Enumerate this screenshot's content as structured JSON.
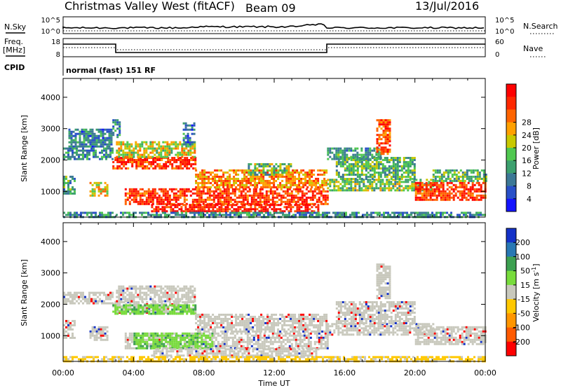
{
  "header": {
    "title": "Christmas Valley West (fitACF)",
    "beam": "Beam 09",
    "date": "13/Jul/2016"
  },
  "top_panels": {
    "nsky_label": "N.Sky",
    "nsky_ticks": [
      "10^5",
      "10^0"
    ],
    "nsearch_label": "N.Search",
    "nsearch_ticks": [
      "10^5",
      "10^0"
    ],
    "freq_label": "Freq.",
    "freq_unit": "[MHz]",
    "freq_ticks": [
      "18",
      "8"
    ],
    "nave_label": "Nave",
    "nave_ticks": [
      "60",
      "0"
    ],
    "cpid_label": "CPID",
    "cpid_text": "normal (fast) 151 RF"
  },
  "chart_data": [
    {
      "type": "heatmap",
      "title": "",
      "xlabel": "",
      "ylabel": "Slant Range [km]",
      "x_ticks": [
        "00:00",
        "04:00",
        "08:00",
        "12:00",
        "16:00",
        "20:00",
        "00:00"
      ],
      "xlim_hours": [
        0,
        24
      ],
      "y_ticks": [
        "1000",
        "2000",
        "3000",
        "4000"
      ],
      "ylim": [
        180,
        4600
      ],
      "colorbar": {
        "label": "Power [dB]",
        "ticks": [
          "4",
          "8",
          "12",
          "16",
          "20",
          "24",
          "28"
        ],
        "range": [
          0,
          30
        ],
        "colors": [
          "#1414ff",
          "#2850c8",
          "#3c7896",
          "#3ca06e",
          "#50c850",
          "#c8c800",
          "#ffa000",
          "#ff6400",
          "#ff2800",
          "#ff0000"
        ]
      },
      "echo_regions": [
        {
          "t": [
            0.0,
            0.6
          ],
          "r": [
            900,
            1500
          ],
          "level": 0.35
        },
        {
          "t": [
            0.0,
            2.8
          ],
          "r": [
            2050,
            2400
          ],
          "level": 0.3
        },
        {
          "t": [
            0.3,
            2.8
          ],
          "r": [
            2400,
            3000
          ],
          "level": 0.25
        },
        {
          "t": [
            1.5,
            2.5
          ],
          "r": [
            850,
            1300
          ],
          "level": 0.6
        },
        {
          "t": [
            2.8,
            3.2
          ],
          "r": [
            2700,
            3300
          ],
          "level": 0.3
        },
        {
          "t": [
            2.8,
            7.5
          ],
          "r": [
            1700,
            2100
          ],
          "level": 0.85
        },
        {
          "t": [
            3.0,
            7.5
          ],
          "r": [
            2100,
            2600
          ],
          "level": 0.55
        },
        {
          "t": [
            6.8,
            7.5
          ],
          "r": [
            2500,
            3200
          ],
          "level": 0.25
        },
        {
          "t": [
            3.5,
            15.0
          ],
          "r": [
            600,
            1100
          ],
          "level": 0.85
        },
        {
          "t": [
            7.5,
            15.0
          ],
          "r": [
            1100,
            1700
          ],
          "level": 0.7
        },
        {
          "t": [
            5.0,
            14.5
          ],
          "r": [
            350,
            600
          ],
          "level": 0.9
        },
        {
          "t": [
            10.5,
            13.0
          ],
          "r": [
            1500,
            1900
          ],
          "level": 0.45
        },
        {
          "t": [
            15.0,
            21.0
          ],
          "r": [
            1000,
            1400
          ],
          "level": 0.45
        },
        {
          "t": [
            15.5,
            20.0
          ],
          "r": [
            1400,
            2100
          ],
          "level": 0.4
        },
        {
          "t": [
            15.0,
            18.0
          ],
          "r": [
            2000,
            2400
          ],
          "level": 0.35
        },
        {
          "t": [
            17.8,
            18.6
          ],
          "r": [
            2200,
            3300
          ],
          "level": 0.8
        },
        {
          "t": [
            20.0,
            24.0
          ],
          "r": [
            750,
            1300
          ],
          "level": 0.85
        },
        {
          "t": [
            21.0,
            24.0
          ],
          "r": [
            1300,
            1700
          ],
          "level": 0.4
        },
        {
          "t": [
            0.0,
            24.0
          ],
          "r": [
            180,
            350
          ],
          "level": 0.3
        }
      ]
    },
    {
      "type": "heatmap",
      "title": "",
      "xlabel": "Time UT",
      "ylabel": "Slant Range [km]",
      "x_ticks": [
        "00:00",
        "04:00",
        "08:00",
        "12:00",
        "16:00",
        "20:00",
        "00:00"
      ],
      "xlim_hours": [
        0,
        24
      ],
      "y_ticks": [
        "1000",
        "2000",
        "3000",
        "4000"
      ],
      "ylim": [
        180,
        4600
      ],
      "colorbar": {
        "label": "Velocity [m s^-1]",
        "ticks": [
          "200",
          "100",
          "50",
          "15",
          "-15",
          "-50",
          "-100",
          "-200"
        ],
        "range": [
          -250,
          250
        ],
        "colors": [
          "#1432c8",
          "#2878b4",
          "#3ca050",
          "#78dc3c",
          "#c8c8bc",
          "#ffc800",
          "#ff9600",
          "#ff5a00",
          "#ff0000"
        ]
      },
      "echo_regions": [
        {
          "t": [
            0.0,
            0.6
          ],
          "r": [
            900,
            1500
          ],
          "level": 0.5
        },
        {
          "t": [
            0.0,
            2.8
          ],
          "r": [
            2050,
            2400
          ],
          "level": 0.5
        },
        {
          "t": [
            1.5,
            2.5
          ],
          "r": [
            850,
            1300
          ],
          "level": 0.5
        },
        {
          "t": [
            2.8,
            7.5
          ],
          "r": [
            1700,
            2100
          ],
          "level": 0.5
        },
        {
          "t": [
            2.8,
            7.5
          ],
          "r": [
            1700,
            2000
          ],
          "level": 0.15
        },
        {
          "t": [
            3.0,
            7.5
          ],
          "r": [
            2100,
            2600
          ],
          "level": 0.5
        },
        {
          "t": [
            3.5,
            15.0
          ],
          "r": [
            600,
            1100
          ],
          "level": 0.5
        },
        {
          "t": [
            4.0,
            8.5
          ],
          "r": [
            600,
            1100
          ],
          "level": 0.15
        },
        {
          "t": [
            7.5,
            15.0
          ],
          "r": [
            1100,
            1700
          ],
          "level": 0.5
        },
        {
          "t": [
            5.0,
            14.5
          ],
          "r": [
            350,
            600
          ],
          "level": 0.5
        },
        {
          "t": [
            15.0,
            21.0
          ],
          "r": [
            1000,
            1400
          ],
          "level": 0.5
        },
        {
          "t": [
            15.5,
            20.0
          ],
          "r": [
            1400,
            2100
          ],
          "level": 0.5
        },
        {
          "t": [
            17.8,
            18.6
          ],
          "r": [
            2200,
            3300
          ],
          "level": 0.5
        },
        {
          "t": [
            20.0,
            24.0
          ],
          "r": [
            750,
            1300
          ],
          "level": 0.5
        },
        {
          "t": [
            0.0,
            24.0
          ],
          "r": [
            180,
            350
          ],
          "level": 0.75
        }
      ]
    }
  ]
}
